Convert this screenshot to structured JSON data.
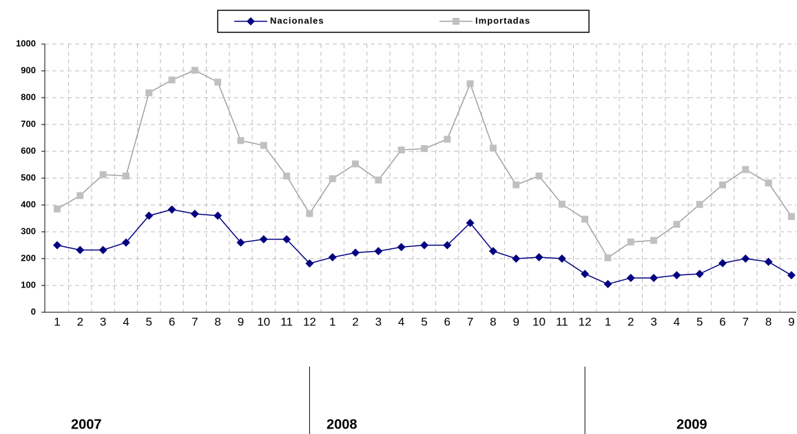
{
  "chart_data": {
    "type": "line",
    "categories": [
      "1",
      "2",
      "3",
      "4",
      "5",
      "6",
      "7",
      "8",
      "9",
      "10",
      "11",
      "12",
      "1",
      "2",
      "3",
      "4",
      "5",
      "6",
      "7",
      "8",
      "9",
      "10",
      "11",
      "12",
      "1",
      "2",
      "3",
      "4",
      "5",
      "6",
      "7",
      "8",
      "9"
    ],
    "years": [
      "2007",
      "2008",
      "2009"
    ],
    "series": [
      {
        "name": "Nacionales",
        "color": "#000080",
        "marker": "diamond",
        "values": [
          250,
          232,
          232,
          260,
          360,
          383,
          367,
          360,
          260,
          272,
          272,
          182,
          205,
          222,
          228,
          243,
          250,
          250,
          333,
          228,
          200,
          205,
          200,
          143,
          105,
          128,
          128,
          138,
          143,
          183,
          200,
          188,
          138
        ]
      },
      {
        "name": "Importadas",
        "color": "#a0a0a0",
        "marker": "square",
        "values": [
          385,
          435,
          513,
          508,
          818,
          866,
          902,
          858,
          640,
          622,
          508,
          368,
          498,
          553,
          493,
          605,
          610,
          645,
          852,
          612,
          475,
          508,
          403,
          347,
          203,
          262,
          268,
          328,
          402,
          475,
          532,
          482,
          357
        ]
      }
    ],
    "ylim": [
      0,
      1000
    ],
    "yticks": [
      0,
      100,
      200,
      300,
      400,
      500,
      600,
      700,
      800,
      900,
      1000
    ],
    "grid": true,
    "legend": "top"
  }
}
